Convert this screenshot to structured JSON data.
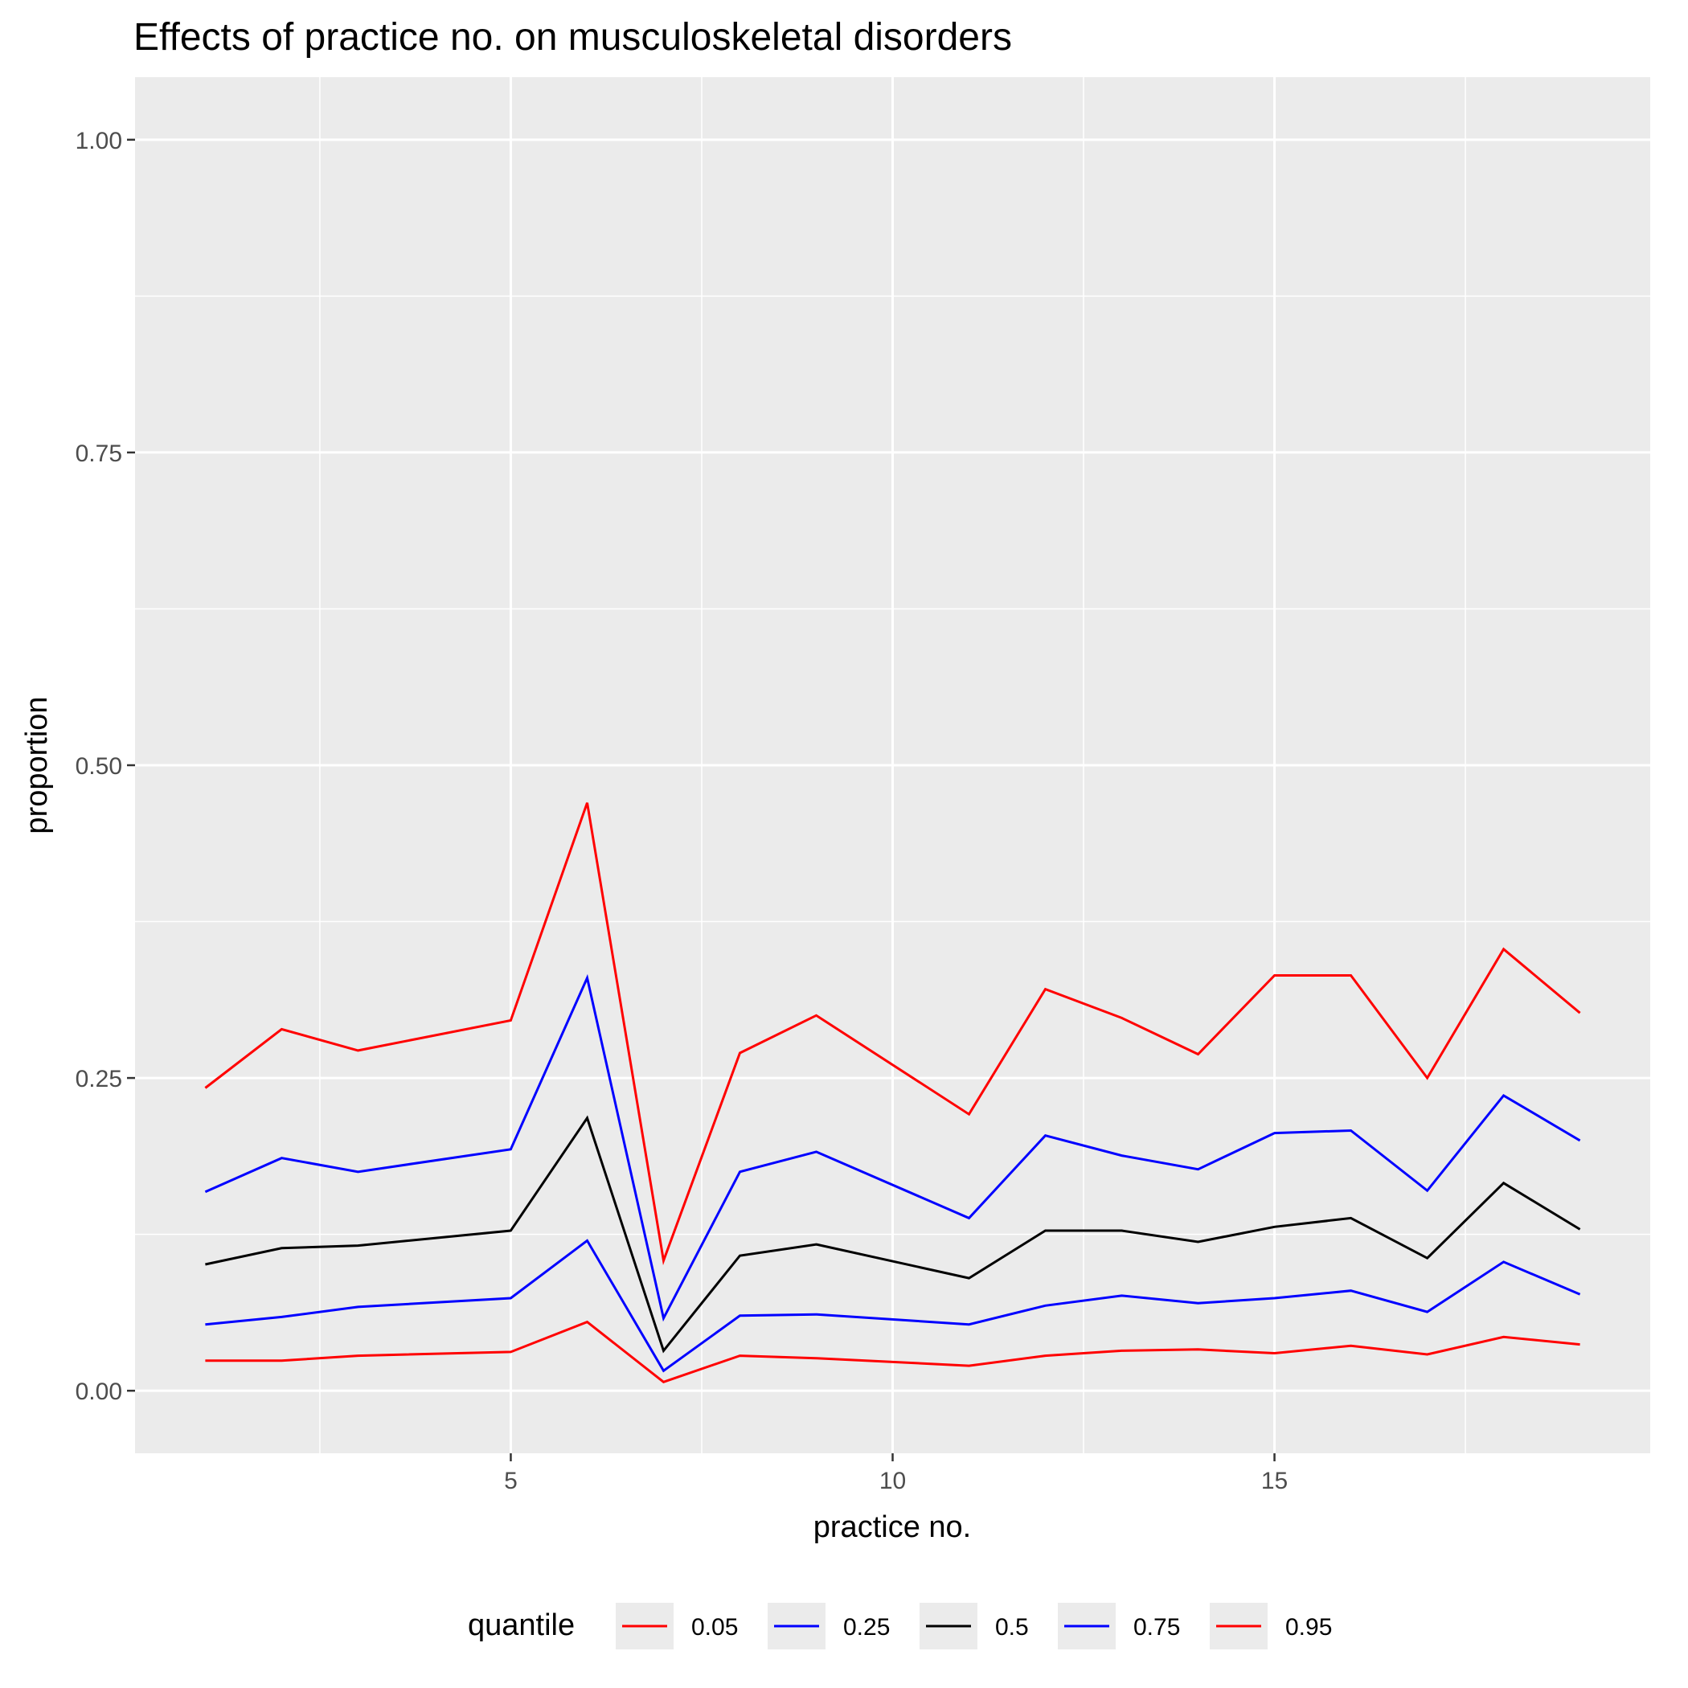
{
  "chart_data": {
    "type": "line",
    "title": "Effects of practice no. on musculoskeletal disorders",
    "xlabel": "practice no.",
    "ylabel": "proportion",
    "xlim": [
      0.08,
      19.92
    ],
    "ylim": [
      -0.05,
      1.05
    ],
    "x_ticks": [
      5,
      10,
      15
    ],
    "x_tick_labels": [
      "5",
      "10",
      "15"
    ],
    "x_minor_ticks": [
      2.5,
      7.5,
      12.5,
      17.5
    ],
    "y_ticks": [
      0,
      0.25,
      0.5,
      0.75,
      1.0
    ],
    "y_tick_labels": [
      "0.00",
      "0.25",
      "0.50",
      "0.75",
      "1.00"
    ],
    "y_minor_ticks": [
      0.125,
      0.375,
      0.625,
      0.875
    ],
    "grid": true,
    "legend_title": "quantile",
    "legend_position": "bottom",
    "x": [
      1,
      2,
      3,
      5,
      6,
      7,
      8,
      9,
      11,
      12,
      13,
      14,
      15,
      16,
      17,
      18,
      19
    ],
    "series": [
      {
        "name": "0.05",
        "color": "#ff0000",
        "values": [
          0.024,
          0.024,
          0.028,
          0.031,
          0.055,
          0.007,
          0.028,
          0.026,
          0.02,
          0.028,
          0.032,
          0.033,
          0.03,
          0.036,
          0.029,
          0.043,
          0.037
        ]
      },
      {
        "name": "0.25",
        "color": "#0000ff",
        "values": [
          0.053,
          0.059,
          0.067,
          0.074,
          0.12,
          0.016,
          0.06,
          0.061,
          0.053,
          0.068,
          0.076,
          0.07,
          0.074,
          0.08,
          0.063,
          0.103,
          0.077
        ]
      },
      {
        "name": "0.5",
        "color": "#000000",
        "values": [
          0.101,
          0.114,
          0.116,
          0.128,
          0.218,
          0.032,
          0.108,
          0.117,
          0.09,
          0.128,
          0.128,
          0.119,
          0.131,
          0.138,
          0.106,
          0.166,
          0.129
        ]
      },
      {
        "name": "0.75",
        "color": "#0000ff",
        "values": [
          0.159,
          0.186,
          0.175,
          0.193,
          0.33,
          0.058,
          0.175,
          0.191,
          0.138,
          0.204,
          0.188,
          0.177,
          0.206,
          0.208,
          0.16,
          0.236,
          0.2
        ]
      },
      {
        "name": "0.95",
        "color": "#ff0000",
        "values": [
          0.242,
          0.289,
          0.272,
          0.296,
          0.47,
          0.104,
          0.27,
          0.3,
          0.221,
          0.321,
          0.298,
          0.269,
          0.332,
          0.332,
          0.25,
          0.353,
          0.302
        ]
      }
    ]
  }
}
